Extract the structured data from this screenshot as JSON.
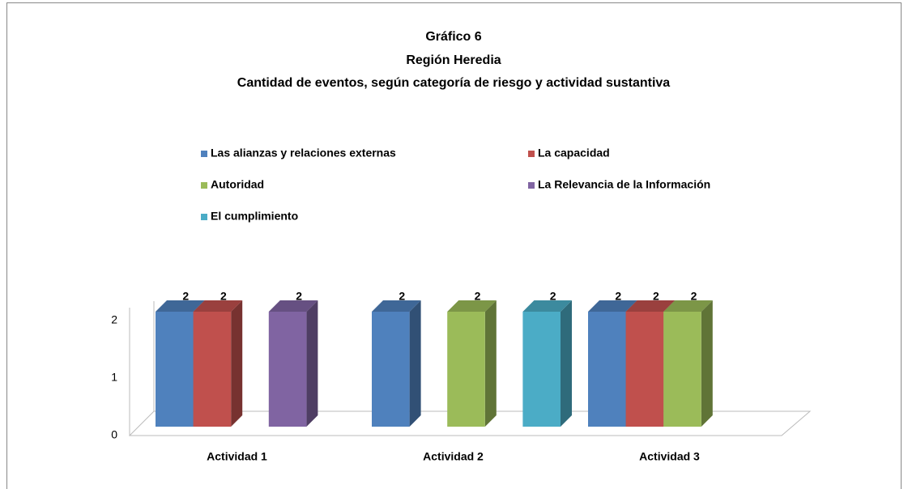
{
  "chart_data": {
    "type": "bar3d",
    "title": [
      "Gráfico 6",
      "Región Heredia",
      "Cantidad de eventos, según categoría de riesgo y actividad sustantiva"
    ],
    "categories": [
      "Actividad 1",
      "Actividad 2",
      "Actividad 3"
    ],
    "series": [
      {
        "name": "Las alianzas  y relaciones externas",
        "color": "#4f81bd",
        "values": [
          2,
          2,
          2
        ]
      },
      {
        "name": "La capacidad",
        "color": "#c0504d",
        "values": [
          2,
          null,
          2
        ]
      },
      {
        "name": "Autoridad",
        "color": "#9bbb59",
        "values": [
          null,
          2,
          2
        ]
      },
      {
        "name": "La Relevancia  de la Información",
        "color": "#8064a2",
        "values": [
          2,
          null,
          null
        ]
      },
      {
        "name": "El cumplimiento",
        "color": "#4bacc6",
        "values": [
          null,
          2,
          null
        ]
      }
    ],
    "ylim": [
      0,
      2
    ],
    "yticks": [
      0,
      1,
      2
    ],
    "legend": "top"
  }
}
